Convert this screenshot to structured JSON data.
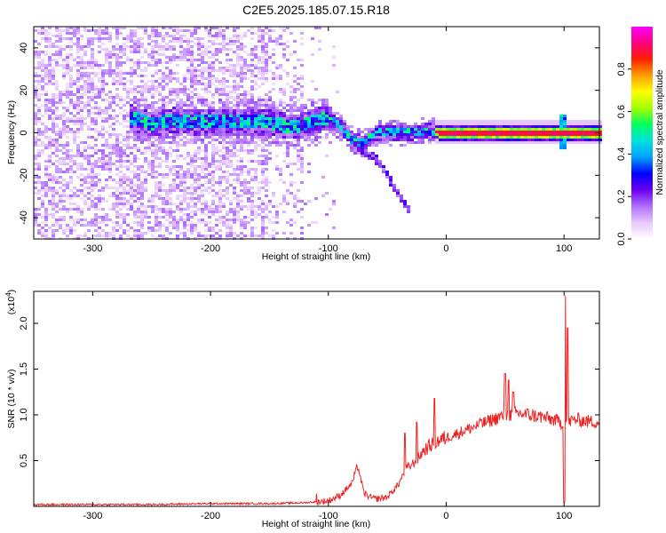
{
  "title": "C2E5.2025.185.07.15.R18",
  "chart_data": [
    {
      "type": "heatmap",
      "xlabel": "Height of straight line (km)",
      "ylabel": "Frequency (Hz)",
      "xlim": [
        -350,
        130
      ],
      "ylim": [
        -50,
        50
      ],
      "xticks": [
        -300,
        -200,
        -100,
        0,
        100
      ],
      "yticks": [
        -40,
        -20,
        0,
        20,
        40
      ],
      "colorbar": {
        "label": "Normalized spectral amplitude",
        "range": [
          0,
          1
        ],
        "ticks": [
          "0.0",
          "0.2",
          "0.4",
          "0.6",
          "0.8"
        ],
        "tick_values": [
          0,
          0.2,
          0.4,
          0.6,
          0.8
        ],
        "colors": [
          "#ffffff",
          "#e8c8ff",
          "#b070ff",
          "#6a00f0",
          "#0000ff",
          "#00a0ff",
          "#00e0e0",
          "#00ff60",
          "#a0ff00",
          "#ffff00",
          "#ffa000",
          "#ff2000",
          "#ff0080",
          "#ff00ff"
        ]
      },
      "ridge": [
        {
          "x": -265,
          "f": 7
        },
        {
          "x": -250,
          "f": 4
        },
        {
          "x": -230,
          "f": 6
        },
        {
          "x": -215,
          "f": 5
        },
        {
          "x": -200,
          "f": 5
        },
        {
          "x": -185,
          "f": 5
        },
        {
          "x": -170,
          "f": 5
        },
        {
          "x": -150,
          "f": 5
        },
        {
          "x": -135,
          "f": 3
        },
        {
          "x": -125,
          "f": 3
        },
        {
          "x": -115,
          "f": 5
        },
        {
          "x": -100,
          "f": 7
        },
        {
          "x": -90,
          "f": 3
        },
        {
          "x": -80,
          "f": -3
        },
        {
          "x": -70,
          "f": -5
        },
        {
          "x": -60,
          "f": 0
        },
        {
          "x": -45,
          "f": 0
        },
        {
          "x": -30,
          "f": 0
        },
        {
          "x": -15,
          "f": 1
        },
        {
          "x": -5,
          "f": 0
        },
        {
          "x": 20,
          "f": 0
        },
        {
          "x": 50,
          "f": 0
        },
        {
          "x": 80,
          "f": 0
        },
        {
          "x": 100,
          "f": 0
        },
        {
          "x": 130,
          "f": 0
        }
      ],
      "branch": [
        {
          "x": -80,
          "f": -4
        },
        {
          "x": -70,
          "f": -9
        },
        {
          "x": -60,
          "f": -12
        },
        {
          "x": -50,
          "f": -20
        },
        {
          "x": -40,
          "f": -30
        },
        {
          "x": -30,
          "f": -37
        }
      ]
    },
    {
      "type": "line",
      "xlabel": "Height of straight line (km)",
      "ylabel": "SNR (10 * v/v)",
      "y_multiplier": "(x10",
      "y_multiplier_exp": "4",
      "y_multiplier_close": ")",
      "xlim": [
        -350,
        130
      ],
      "ylim": [
        0,
        2.35
      ],
      "xticks": [
        -300,
        -200,
        -100,
        0,
        100
      ],
      "yticks": [
        0.5,
        1.0,
        1.5,
        2.0
      ],
      "ytick_labels": [
        "0.5",
        "1.0",
        "1.5",
        "2.0"
      ],
      "color": "#ee2222",
      "series": [
        {
          "x": [
            -350,
            -300,
            -250,
            -200,
            -150,
            -120,
            -100,
            -90,
            -80,
            -75,
            -70,
            -65,
            -60,
            -50,
            -40,
            -35,
            -30,
            -25,
            -20,
            -10,
            0,
            10,
            20,
            30,
            40,
            50,
            55,
            60,
            70,
            80,
            90,
            95,
            100,
            105,
            110,
            120,
            130
          ],
          "values": [
            0.02,
            0.02,
            0.02,
            0.03,
            0.03,
            0.04,
            0.06,
            0.12,
            0.25,
            0.45,
            0.15,
            0.1,
            0.08,
            0.1,
            0.25,
            0.4,
            0.45,
            0.5,
            0.6,
            0.7,
            0.75,
            0.8,
            0.85,
            0.9,
            0.95,
            1.0,
            1.0,
            1.02,
            1.0,
            0.98,
            0.95,
            0.93,
            0.9,
            0.93,
            0.95,
            0.93,
            0.92
          ]
        }
      ],
      "spikes": [
        {
          "x": -35,
          "y": 0.8
        },
        {
          "x": -25,
          "y": 0.92
        },
        {
          "x": -10,
          "y": 1.18
        },
        {
          "x": 30,
          "y": 0.95
        },
        {
          "x": 50,
          "y": 1.45
        },
        {
          "x": 53,
          "y": 1.38
        },
        {
          "x": 57,
          "y": 1.25
        },
        {
          "x": 101,
          "y": 2.3
        },
        {
          "x": 103,
          "y": 1.95
        },
        {
          "x": 100,
          "y": 0.05
        }
      ]
    }
  ]
}
